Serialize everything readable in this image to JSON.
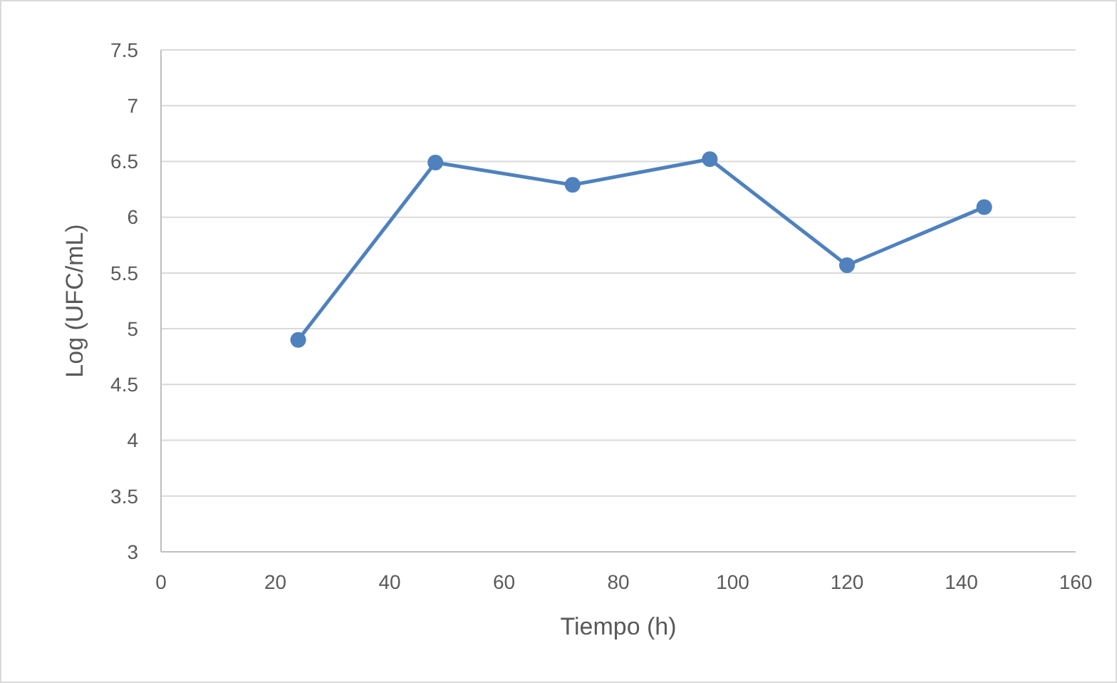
{
  "chart_data": {
    "type": "line",
    "xlabel": "Tiempo (h)",
    "ylabel": "Log (UFC/mL)",
    "x": [
      24,
      48,
      72,
      96,
      120,
      144
    ],
    "series": [
      {
        "color": "#4f81bd",
        "values": [
          4.9,
          6.49,
          6.29,
          6.52,
          5.57,
          6.09
        ]
      }
    ],
    "xlim": [
      0,
      160
    ],
    "xticks": [
      0,
      20,
      40,
      60,
      80,
      100,
      120,
      140,
      160
    ],
    "ylim": [
      3,
      7.5
    ],
    "yticks": [
      3,
      3.5,
      4,
      4.5,
      5,
      5.5,
      6,
      6.5,
      7,
      7.5
    ],
    "grid": "y",
    "marker": "circle",
    "line_style": "solid"
  }
}
